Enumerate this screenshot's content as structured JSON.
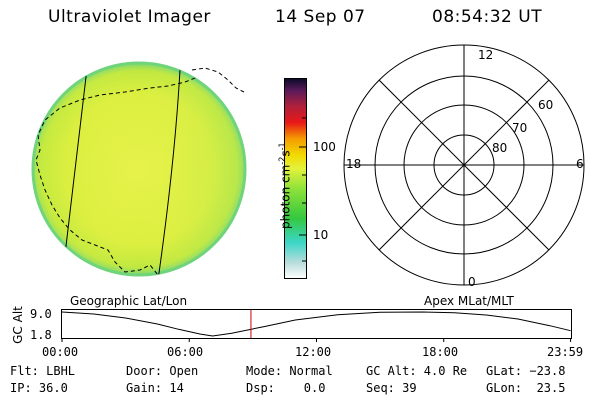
{
  "header": {
    "instrument": "Ultraviolet Imager",
    "date": "14 Sep 07",
    "time": "08:54:32 UT"
  },
  "colorbar": {
    "unit_label": "photon cm",
    "unit_sup1": "-2",
    "unit_mid": "s",
    "unit_sup2": "-1",
    "ticks": [
      "100",
      "10"
    ]
  },
  "polar": {
    "mlt_labels": [
      "12",
      "18",
      "6",
      "0"
    ],
    "lat_labels": [
      "60",
      "70",
      "80"
    ]
  },
  "projection_labels": {
    "left": "Geographic Lat/Lon",
    "right": "Apex MLat/MLT"
  },
  "alt_plot": {
    "ylabel": "GC Alt",
    "ymax_label": "9.0",
    "ymin_label": "1.8",
    "time_ticks": [
      "00:00",
      "06:00",
      "12:00",
      "18:00",
      "23:59"
    ]
  },
  "chart_data": {
    "type": "line",
    "title": "",
    "xlabel": "",
    "ylabel": "GC Alt",
    "xlim": [
      0,
      24
    ],
    "ylim": [
      1.8,
      9.0
    ],
    "series": [
      {
        "x": [
          0,
          1.5,
          3,
          4.5,
          5.5,
          6.5,
          7.1,
          8,
          9.5,
          11,
          13,
          15,
          17,
          18.5,
          20,
          21.5,
          23,
          23.98
        ],
        "y": [
          9.0,
          8.4,
          7.2,
          5.4,
          3.8,
          2.4,
          1.8,
          2.6,
          4.6,
          6.6,
          8.2,
          8.9,
          9.0,
          8.8,
          8.1,
          6.9,
          4.9,
          3.4
        ]
      }
    ],
    "current_time": 8.909,
    "grid": false
  },
  "footer": {
    "flt": "Flt: LBHL",
    "ip": "IP: 36.0",
    "door": "Door: Open",
    "gain": "Gain: 14",
    "mode": "Mode: Normal",
    "dsp": "Dsp:    0.0",
    "gcalt": "GC Alt: 4.0 Re",
    "seq": "Seq: 39",
    "glat": "GLat: −23.8",
    "glon": "GLon:  23.5"
  },
  "colors": {
    "disk_fill": "#d9ef3f",
    "disk_edge": "#6fd47a",
    "ring": "#000000",
    "time_marker": "#cc0000"
  }
}
